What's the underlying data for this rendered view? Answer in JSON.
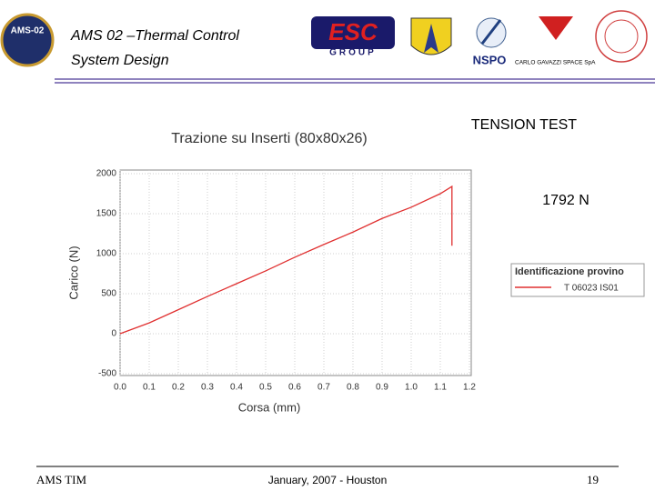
{
  "slide": {
    "title_lines": [
      "AMS 02 –Thermal Control",
      "System Design"
    ],
    "logos": {
      "ams": "AMS-02",
      "esc": "ESC",
      "esc_sub": "GROUP",
      "nspo": "NSPO",
      "cgs": "CARLO GAVAZZI SPACE SpA"
    },
    "heading": "TENSION TEST",
    "annotation": "1792 N",
    "footer": {
      "left": "AMS TIM",
      "center": "January, 2007 - Houston",
      "page": "19"
    }
  },
  "chart_data": {
    "type": "line",
    "title": "Trazione su Inserti (80x80x26)",
    "x_label": "Corsa (mm)",
    "y_label": "Carico (N)",
    "x": [
      0,
      0.1,
      0.2,
      0.3,
      0.4,
      0.5,
      0.6,
      0.7,
      0.8,
      0.9,
      1.0,
      1.1,
      1.14,
      1.14
    ],
    "series": [
      {
        "name": "T 06023 IS01",
        "color": "#e03030",
        "values": [
          0,
          135,
          300,
          465,
          625,
          785,
          955,
          1115,
          1270,
          1440,
          1580,
          1750,
          1840,
          1100
        ]
      }
    ],
    "legend_title": "Identificazione provino",
    "xlim": [
      0,
      1.2
    ],
    "ylim": [
      -500,
      2000
    ],
    "xticks": [
      {
        "value": 0,
        "label": "0.0"
      },
      0.1,
      0.2,
      0.3,
      0.4,
      0.5,
      0.6,
      0.7,
      0.8,
      0.9,
      {
        "value": 1,
        "label": "1.0"
      },
      1.1,
      1.2
    ],
    "yticks": [
      -500,
      0,
      500,
      1000,
      1500,
      2000
    ],
    "grid": true
  }
}
